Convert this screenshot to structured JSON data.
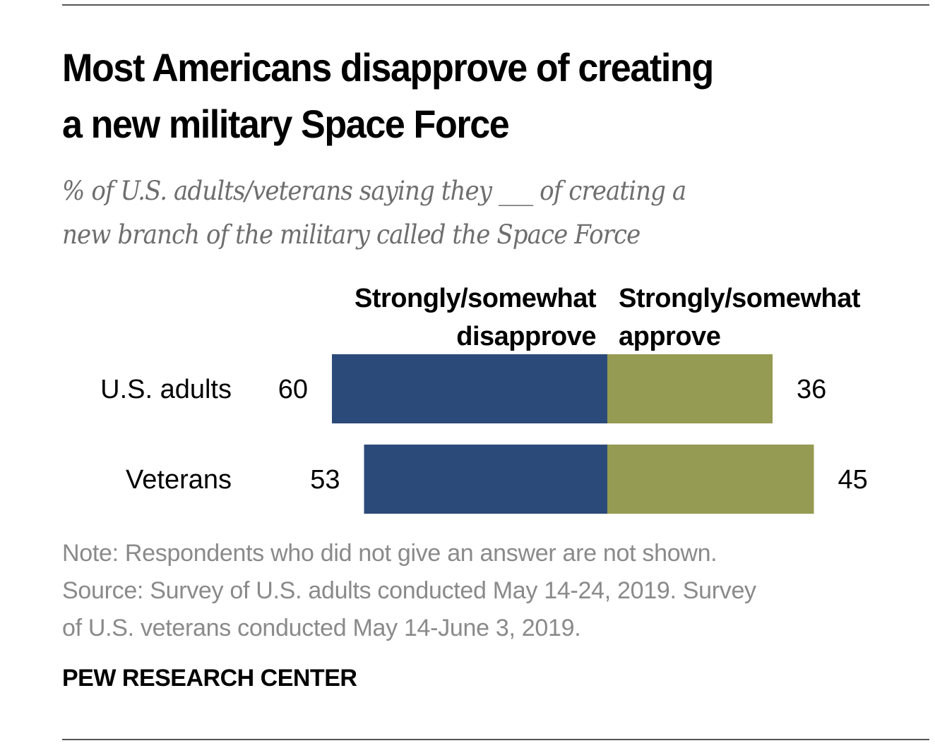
{
  "chart_data": {
    "type": "bar",
    "orientation": "horizontal-diverging",
    "title": "Most Americans disapprove of creating a new military Space Force",
    "title_lines": [
      "Most Americans disapprove of creating",
      "a new military Space Force"
    ],
    "subtitle_lines": [
      "% of U.S. adults/veterans saying they ___ of creating a",
      "new branch of the military called the Space Force"
    ],
    "categories": [
      "U.S. adults",
      "Veterans"
    ],
    "series": [
      {
        "name": "Strongly/somewhat disapprove",
        "label_lines": [
          "Strongly/somewhat",
          "disapprove"
        ],
        "color": "#2c4a79",
        "direction": "left",
        "values": [
          60,
          53
        ]
      },
      {
        "name": "Strongly/somewhat approve",
        "label_lines": [
          "Strongly/somewhat",
          "approve"
        ],
        "color": "#959b52",
        "direction": "right",
        "values": [
          36,
          45
        ]
      }
    ],
    "xlabel": "",
    "ylabel": "",
    "grid": false,
    "legend": "top-center"
  },
  "footer": {
    "note_lines": [
      "Note: Respondents who did not give an answer are not shown.",
      "Source: Survey of U.S. adults conducted May 14-24, 2019. Survey",
      "of U.S. veterans conducted May 14-June 3, 2019."
    ],
    "brand": "PEW RESEARCH CENTER"
  }
}
